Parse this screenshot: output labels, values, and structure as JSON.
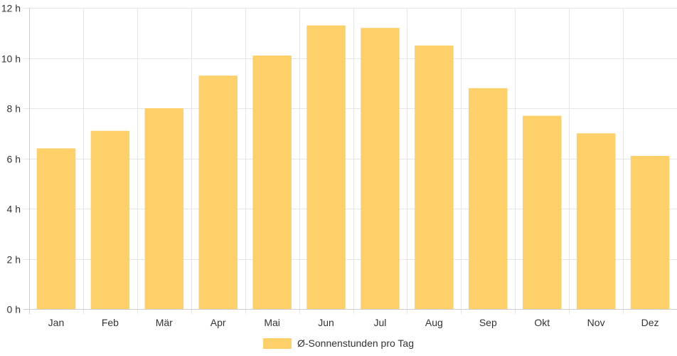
{
  "chart_data": {
    "type": "bar",
    "categories": [
      "Jan",
      "Feb",
      "Mär",
      "Apr",
      "Mai",
      "Jun",
      "Jul",
      "Aug",
      "Sep",
      "Okt",
      "Nov",
      "Dez"
    ],
    "series": [
      {
        "name": "Ø-Sonnenstunden pro Tag",
        "values": [
          6.4,
          7.1,
          8.0,
          9.3,
          10.1,
          11.3,
          11.2,
          10.5,
          8.8,
          7.7,
          7.0,
          6.1
        ],
        "color": "#fdd06a"
      }
    ],
    "y_ticks": [
      "0 h",
      "2 h",
      "4 h",
      "6 h",
      "8 h",
      "10 h",
      "12 h"
    ],
    "ylim": [
      0,
      12
    ],
    "grid": true,
    "legend_position": "bottom"
  }
}
